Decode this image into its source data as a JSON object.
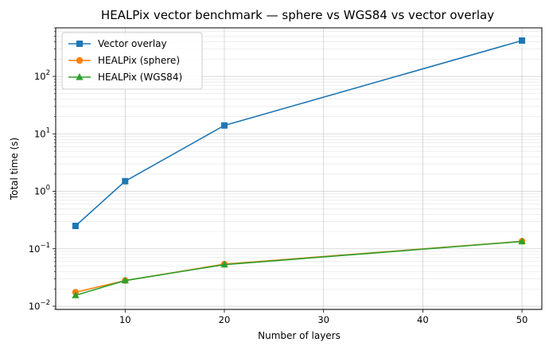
{
  "chart_data": {
    "type": "line",
    "title": "HEALPix vector benchmark — sphere vs WGS84 vs vector overlay",
    "xlabel": "Number of layers",
    "ylabel": "Total time (s)",
    "x": [
      5,
      10,
      20,
      50
    ],
    "xlim": [
      3,
      52
    ],
    "xticks": [
      10,
      20,
      30,
      40,
      50
    ],
    "y_scale": "log",
    "ylim": [
      0.0088,
      700
    ],
    "yticks": [
      {
        "value": 0.01,
        "base": "10",
        "exp": "−2"
      },
      {
        "value": 0.1,
        "base": "10",
        "exp": "−1"
      },
      {
        "value": 1,
        "base": "10",
        "exp": "0"
      },
      {
        "value": 10,
        "base": "10",
        "exp": "1"
      },
      {
        "value": 100,
        "base": "10",
        "exp": "2"
      }
    ],
    "grid": true,
    "legend_position": "top-left",
    "series": [
      {
        "name": "Vector overlay",
        "color": "#1f77b4",
        "marker": "square",
        "values": [
          0.25,
          1.5,
          14,
          420
        ]
      },
      {
        "name": "HEALPix (sphere)",
        "color": "#ff7f0e",
        "marker": "circle",
        "values": [
          0.0175,
          0.028,
          0.054,
          0.135
        ]
      },
      {
        "name": "HEALPix (WGS84)",
        "color": "#2ca02c",
        "marker": "triangle",
        "values": [
          0.0155,
          0.028,
          0.053,
          0.134
        ]
      }
    ]
  }
}
